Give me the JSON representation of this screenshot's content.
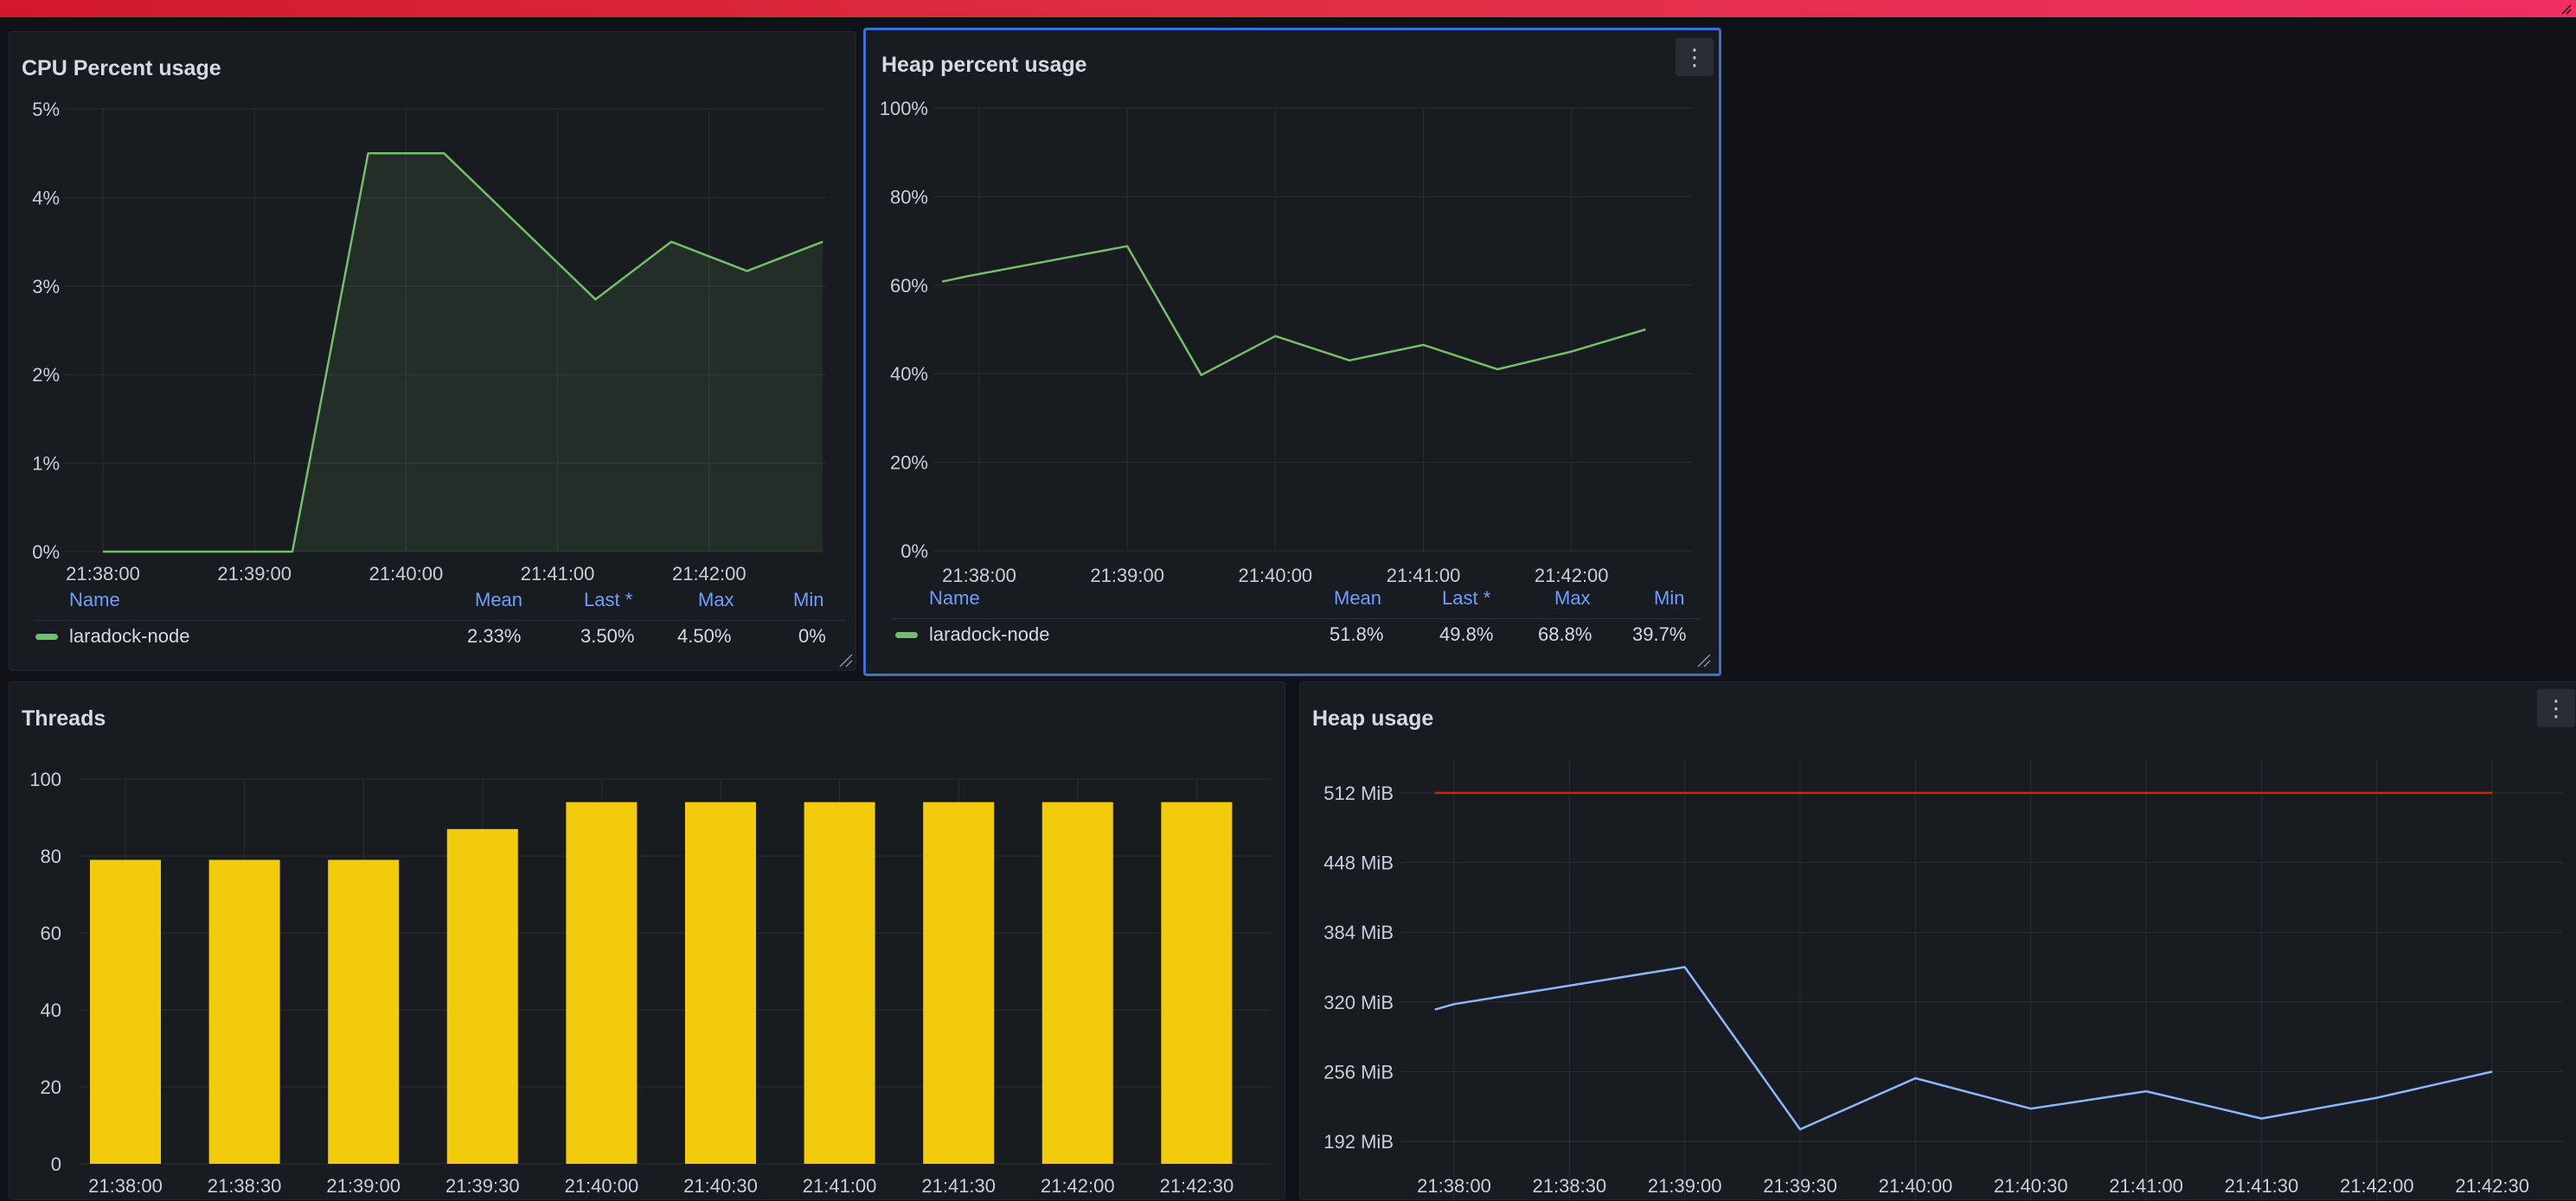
{
  "colors": {
    "green": "#73bf69",
    "yellow": "#f2cc0c",
    "blue": "#8ab8ff",
    "red": "#c4290c",
    "accent": "#3d71d9",
    "legend_header": "#6e9fff"
  },
  "panels": {
    "cpu": {
      "title": "CPU Percent usage",
      "legend": {
        "headers": [
          "Name",
          "Mean",
          "Last *",
          "Max",
          "Min"
        ],
        "series_name": "laradock-node",
        "values": [
          "2.33%",
          "3.50%",
          "4.50%",
          "0%"
        ]
      }
    },
    "heap_percent": {
      "title": "Heap percent usage",
      "menu_icon": "more-vertical-icon",
      "legend": {
        "headers": [
          "Name",
          "Mean",
          "Last *",
          "Max",
          "Min"
        ],
        "series_name": "laradock-node",
        "values": [
          "51.8%",
          "49.8%",
          "68.8%",
          "39.7%"
        ]
      }
    },
    "threads": {
      "title": "Threads"
    },
    "heap_usage": {
      "title": "Heap usage",
      "menu_icon": "more-vertical-icon"
    }
  },
  "chart_data": [
    {
      "type": "area",
      "panel": "cpu",
      "title": "CPU Percent usage",
      "x_ticks": [
        "21:38:00",
        "21:39:00",
        "21:40:00",
        "21:41:00",
        "21:42:00"
      ],
      "y_ticks": [
        "0%",
        "1%",
        "2%",
        "3%",
        "4%",
        "5%"
      ],
      "ylim": [
        0,
        5
      ],
      "xlim_seconds_from_first_tick": [
        0,
        300
      ],
      "series": [
        {
          "name": "laradock-node",
          "color": "#73bf69",
          "x_seconds": [
            0,
            75,
            105,
            135,
            195,
            225,
            255,
            285
          ],
          "values": [
            0,
            0,
            4.5,
            4.5,
            2.85,
            3.5,
            3.17,
            3.5
          ]
        }
      ],
      "grid": true,
      "legend_placement": "bottom"
    },
    {
      "type": "line",
      "panel": "heap_percent",
      "title": "Heap percent usage",
      "x_ticks": [
        "21:38:00",
        "21:39:00",
        "21:40:00",
        "21:41:00",
        "21:42:00"
      ],
      "y_ticks": [
        "0%",
        "20%",
        "40%",
        "60%",
        "80%",
        "100%"
      ],
      "ylim": [
        0,
        100
      ],
      "series": [
        {
          "name": "laradock-node",
          "color": "#73bf69",
          "x_seconds": [
            -15,
            -5,
            60,
            90,
            120,
            150,
            180,
            210,
            240,
            270
          ],
          "values": [
            60.8,
            62,
            68.8,
            39.7,
            48.5,
            43,
            46.5,
            41,
            45,
            50
          ]
        }
      ],
      "grid": true,
      "legend_placement": "bottom"
    },
    {
      "type": "bar",
      "panel": "threads",
      "title": "Threads",
      "categories": [
        "21:38:00",
        "21:38:30",
        "21:39:00",
        "21:39:30",
        "21:40:00",
        "21:40:30",
        "21:41:00",
        "21:41:30",
        "21:42:00",
        "21:42:30"
      ],
      "values": [
        79,
        79,
        79,
        87,
        94,
        94,
        94,
        94,
        94,
        94
      ],
      "y_ticks": [
        "0",
        "20",
        "40",
        "60",
        "80",
        "100"
      ],
      "ylim": [
        0,
        100
      ],
      "color": "#f2cc0c",
      "grid": true
    },
    {
      "type": "line",
      "panel": "heap_usage",
      "title": "Heap usage",
      "x_ticks": [
        "21:38:00",
        "21:38:30",
        "21:39:00",
        "21:39:30",
        "21:40:00",
        "21:40:30",
        "21:41:00",
        "21:41:30",
        "21:42:00",
        "21:42:30"
      ],
      "y_ticks": [
        "192 MiB",
        "256 MiB",
        "320 MiB",
        "384 MiB",
        "448 MiB",
        "512 MiB"
      ],
      "y_unit": "MiB",
      "series": [
        {
          "color": "#8ab8ff",
          "x_seconds": [
            -5,
            0,
            60,
            90,
            120,
            150,
            180,
            210,
            240,
            270
          ],
          "values": [
            313,
            318,
            352,
            203,
            250,
            222,
            238,
            213,
            232,
            256
          ]
        },
        {
          "color": "#c4290c",
          "x_seconds": [
            -5,
            270
          ],
          "values": [
            512,
            512
          ]
        }
      ],
      "grid": true
    }
  ]
}
